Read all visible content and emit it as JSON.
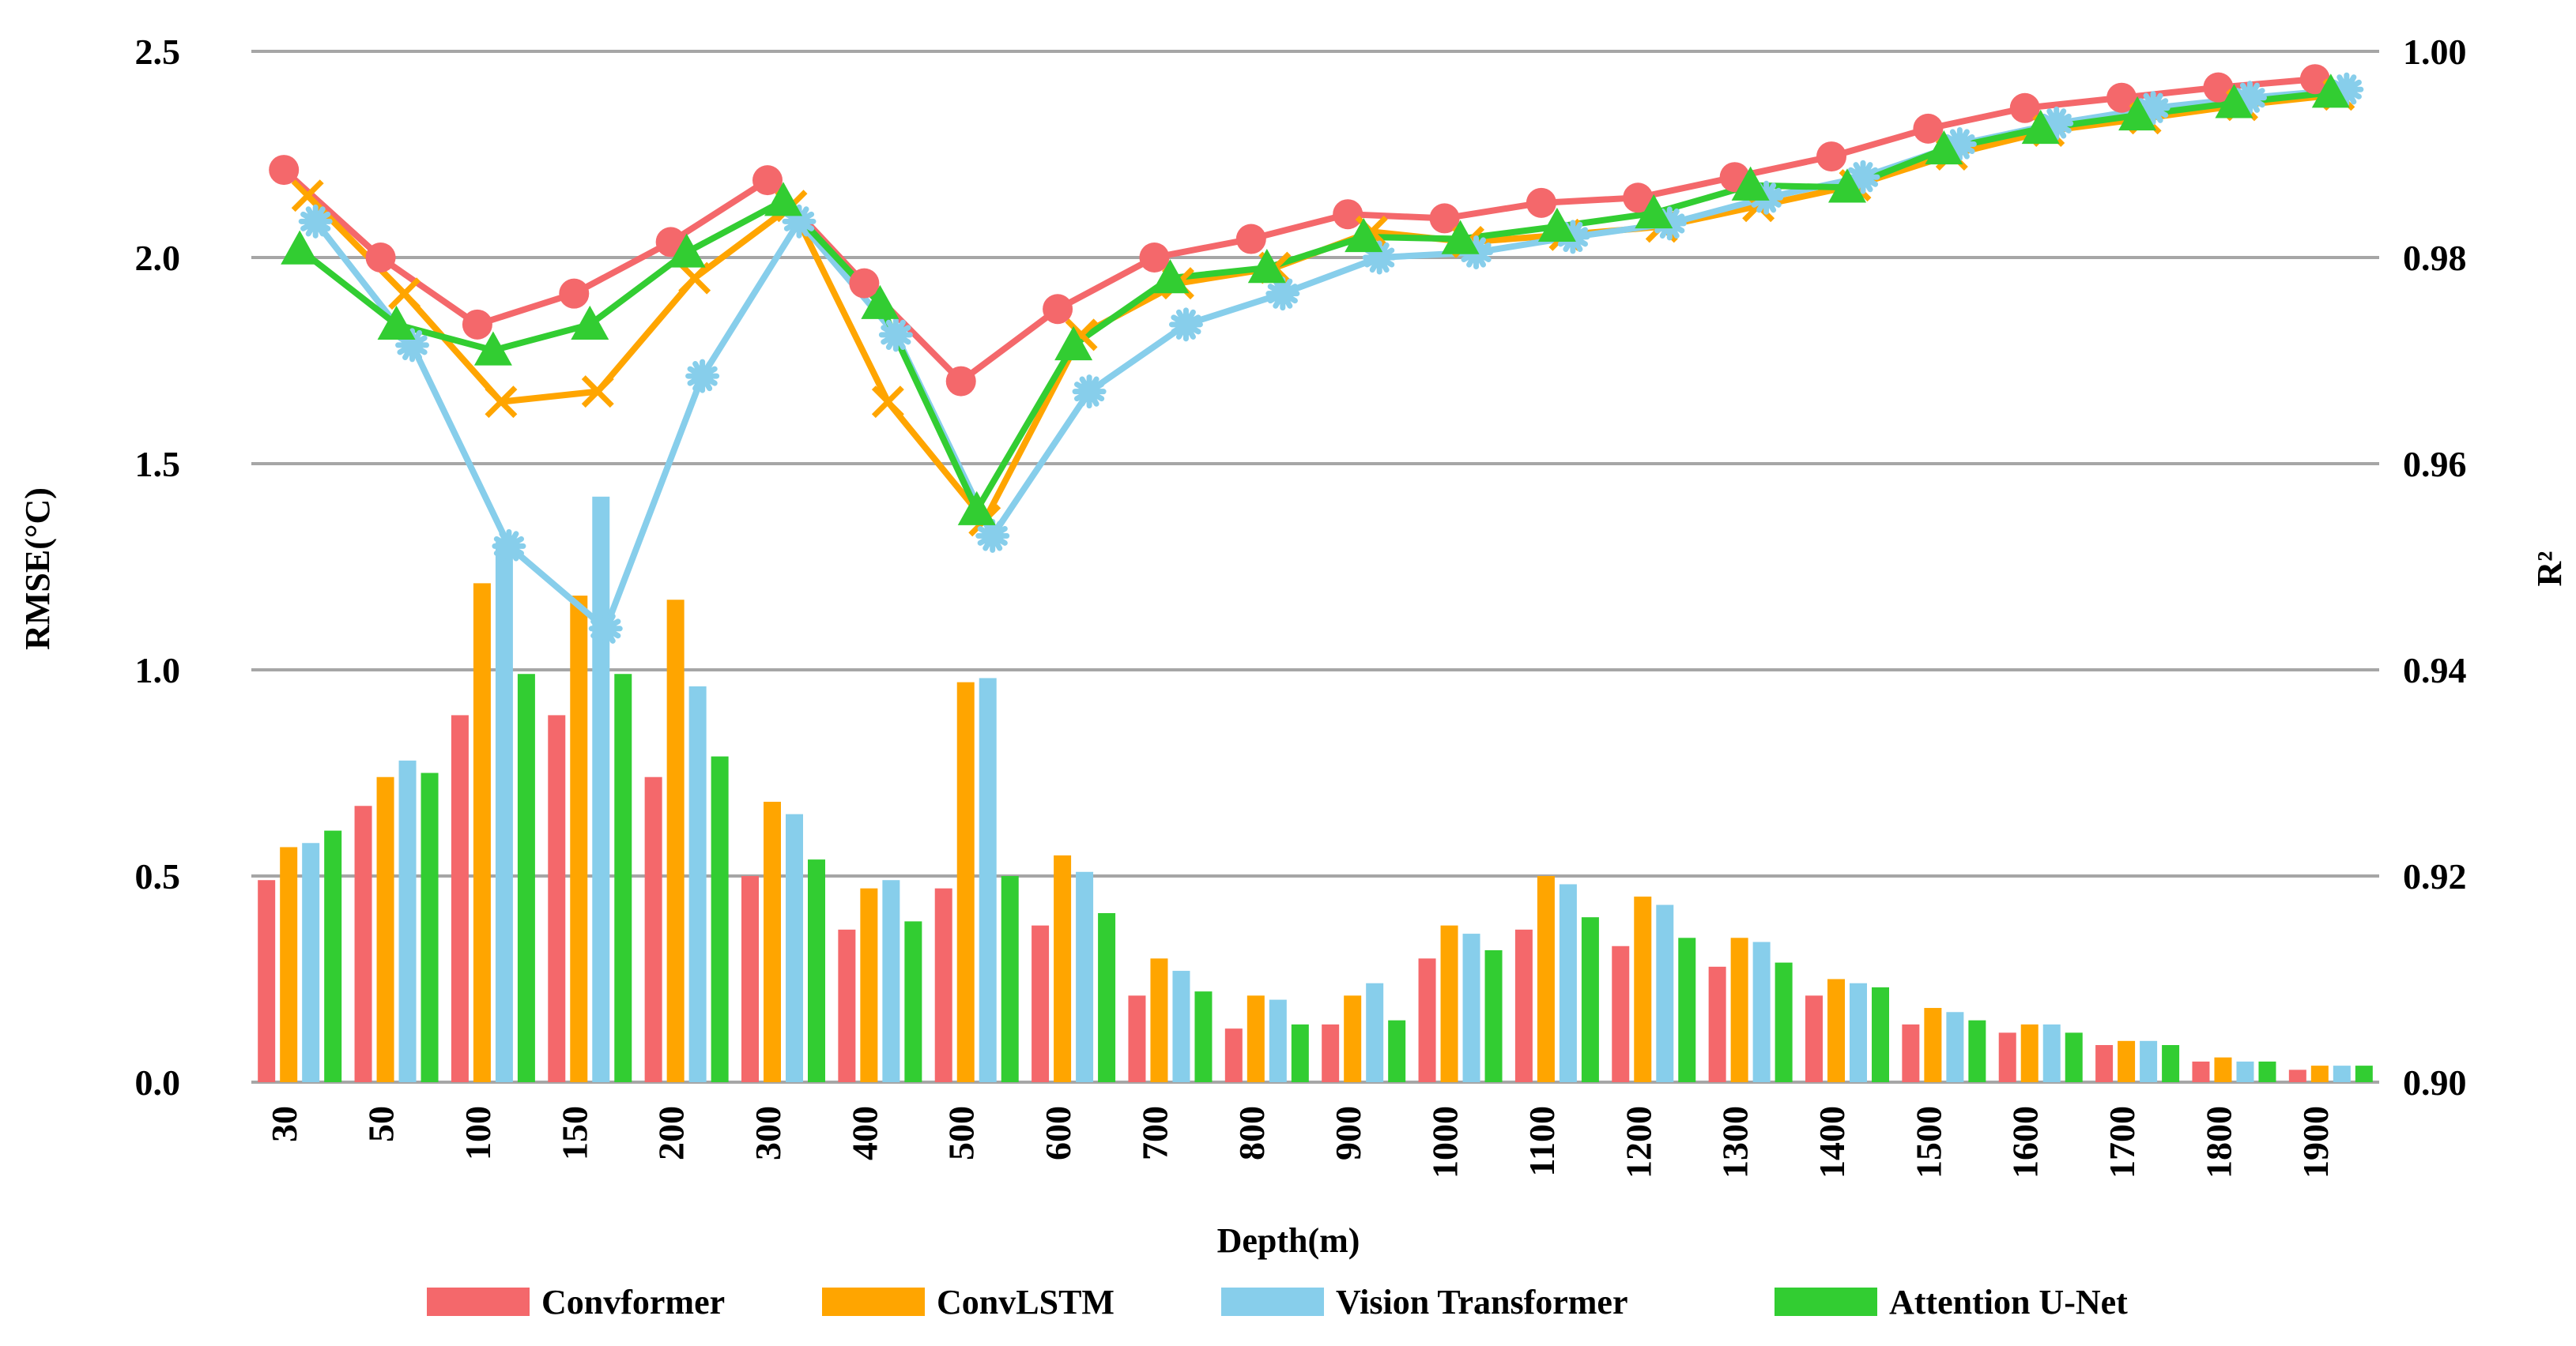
{
  "chart_data": {
    "type": "bar+line",
    "title": "",
    "xlabel": "Depth(m)",
    "ylabel_left": "RMSE(°C)",
    "ylabel_right": "R²",
    "categories": [
      "30",
      "50",
      "100",
      "150",
      "200",
      "300",
      "400",
      "500",
      "600",
      "700",
      "800",
      "900",
      "1000",
      "1100",
      "1200",
      "1300",
      "1400",
      "1500",
      "1600",
      "1700",
      "1800",
      "1900"
    ],
    "y_left": {
      "min": 0.0,
      "max": 2.5,
      "ticks": [
        "0.0",
        "0.5",
        "1.0",
        "1.5",
        "2.0",
        "2.5"
      ]
    },
    "y_right": {
      "min": 0.9,
      "max": 1.0,
      "ticks": [
        "0.90",
        "0.92",
        "0.94",
        "0.96",
        "0.98",
        "1.00"
      ]
    },
    "grid": true,
    "legend_position": "bottom",
    "series": [
      {
        "name": "Convformer",
        "color": "#F4686B",
        "marker": "circle",
        "rmse": [
          0.49,
          0.67,
          0.89,
          0.89,
          0.74,
          0.5,
          0.37,
          0.47,
          0.38,
          0.21,
          0.13,
          0.14,
          0.3,
          0.37,
          0.33,
          0.28,
          0.21,
          0.14,
          0.12,
          0.09,
          0.05,
          0.03
        ],
        "r2": [
          0.9885,
          0.98,
          0.9735,
          0.9765,
          0.9815,
          0.9875,
          0.9775,
          0.968,
          0.975,
          0.98,
          0.9818,
          0.9842,
          0.9838,
          0.9853,
          0.9858,
          0.9878,
          0.9898,
          0.9925,
          0.9945,
          0.9955,
          0.9965,
          0.9973
        ]
      },
      {
        "name": "ConvLSTM",
        "color": "#FFA500",
        "marker": "x",
        "rmse": [
          0.57,
          0.74,
          1.21,
          1.18,
          1.17,
          0.68,
          0.47,
          0.97,
          0.55,
          0.3,
          0.21,
          0.21,
          0.38,
          0.5,
          0.45,
          0.35,
          0.25,
          0.18,
          0.14,
          0.1,
          0.06,
          0.04
        ],
        "r2": [
          0.986,
          0.9765,
          0.966,
          0.967,
          0.978,
          0.985,
          0.966,
          0.9545,
          0.9725,
          0.9775,
          0.979,
          0.9825,
          0.9815,
          0.9822,
          0.983,
          0.985,
          0.987,
          0.99,
          0.9923,
          0.9935,
          0.9948,
          0.9958
        ]
      },
      {
        "name": "Vision Transformer",
        "color": "#87CEEB",
        "marker": "star",
        "rmse": [
          0.58,
          0.78,
          1.31,
          1.42,
          0.96,
          0.65,
          0.49,
          0.98,
          0.51,
          0.27,
          0.2,
          0.24,
          0.36,
          0.48,
          0.43,
          0.34,
          0.24,
          0.17,
          0.14,
          0.1,
          0.05,
          0.04
        ],
        "r2": [
          0.9835,
          0.9715,
          0.952,
          0.944,
          0.9685,
          0.9835,
          0.9725,
          0.953,
          0.967,
          0.9735,
          0.9765,
          0.98,
          0.9805,
          0.982,
          0.9833,
          0.9858,
          0.9878,
          0.991,
          0.993,
          0.9945,
          0.9955,
          0.9963
        ]
      },
      {
        "name": "Attention U-Net",
        "color": "#32CD32",
        "marker": "triangle",
        "rmse": [
          0.61,
          0.75,
          0.99,
          0.99,
          0.79,
          0.54,
          0.39,
          0.5,
          0.41,
          0.22,
          0.14,
          0.15,
          0.32,
          0.4,
          0.35,
          0.29,
          0.23,
          0.15,
          0.12,
          0.09,
          0.05,
          0.04
        ],
        "r2": [
          0.9808,
          0.9735,
          0.971,
          0.9735,
          0.9805,
          0.9855,
          0.9755,
          0.9555,
          0.9715,
          0.978,
          0.979,
          0.982,
          0.9818,
          0.983,
          0.9843,
          0.987,
          0.9868,
          0.9905,
          0.9925,
          0.9938,
          0.995,
          0.996
        ]
      }
    ]
  }
}
